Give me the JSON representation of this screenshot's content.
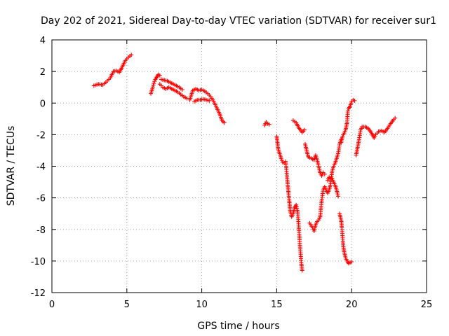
{
  "chart_data": {
    "type": "scatter",
    "title": "Day 202 of 2021, Sidereal Day-to-day VTEC variation (SDTVAR) for receiver sur1",
    "xlabel": "GPS time / hours",
    "ylabel": "SDTVAR / TECUs",
    "xlim": [
      0,
      25
    ],
    "ylim": [
      -12,
      4
    ],
    "xticks": [
      0,
      5,
      10,
      15,
      20,
      25
    ],
    "yticks": [
      -12,
      -10,
      -8,
      -6,
      -4,
      -2,
      0,
      2,
      4
    ],
    "grid": true,
    "marker": "+",
    "color": "#ff0000",
    "series": [
      {
        "name": "segment-1",
        "points": [
          [
            2.8,
            1.1
          ],
          [
            3.1,
            1.2
          ],
          [
            3.4,
            1.15
          ],
          [
            3.7,
            1.4
          ],
          [
            3.9,
            1.6
          ],
          [
            4.1,
            2.0
          ],
          [
            4.3,
            2.05
          ],
          [
            4.5,
            1.95
          ],
          [
            4.7,
            2.3
          ],
          [
            4.9,
            2.7
          ],
          [
            5.1,
            2.9
          ],
          [
            5.3,
            3.05
          ]
        ]
      },
      {
        "name": "segment-2",
        "points": [
          [
            6.6,
            0.6
          ],
          [
            6.7,
            0.9
          ],
          [
            6.8,
            1.25
          ],
          [
            6.9,
            1.5
          ],
          [
            7.0,
            1.65
          ],
          [
            7.1,
            1.8
          ],
          [
            7.2,
            1.75
          ]
        ]
      },
      {
        "name": "segment-3",
        "points": [
          [
            7.2,
            1.2
          ],
          [
            7.4,
            1.0
          ],
          [
            7.6,
            0.9
          ],
          [
            7.8,
            1.0
          ],
          [
            8.0,
            0.9
          ],
          [
            8.2,
            0.8
          ],
          [
            8.4,
            0.7
          ],
          [
            8.6,
            0.55
          ],
          [
            8.8,
            0.4
          ],
          [
            9.0,
            0.3
          ]
        ]
      },
      {
        "name": "segment-4",
        "points": [
          [
            7.3,
            1.5
          ],
          [
            7.5,
            1.45
          ],
          [
            7.7,
            1.4
          ],
          [
            7.9,
            1.3
          ],
          [
            8.1,
            1.2
          ],
          [
            8.3,
            1.1
          ],
          [
            8.5,
            1.0
          ],
          [
            8.7,
            0.85
          ]
        ]
      },
      {
        "name": "segment-5",
        "points": [
          [
            9.2,
            0.2
          ],
          [
            9.3,
            0.5
          ],
          [
            9.4,
            0.8
          ],
          [
            9.6,
            0.9
          ],
          [
            9.8,
            0.8
          ],
          [
            10.0,
            0.85
          ],
          [
            10.2,
            0.75
          ],
          [
            10.4,
            0.6
          ],
          [
            10.6,
            0.4
          ],
          [
            10.8,
            0.1
          ],
          [
            11.0,
            -0.3
          ],
          [
            11.2,
            -0.7
          ],
          [
            11.35,
            -1.1
          ],
          [
            11.5,
            -1.25
          ]
        ]
      },
      {
        "name": "segment-6",
        "points": [
          [
            9.5,
            0.1
          ],
          [
            9.7,
            0.2
          ],
          [
            9.9,
            0.2
          ],
          [
            10.1,
            0.25
          ],
          [
            10.3,
            0.2
          ],
          [
            10.5,
            0.15
          ]
        ]
      },
      {
        "name": "segment-7",
        "points": [
          [
            14.2,
            -1.4
          ],
          [
            14.3,
            -1.2
          ],
          [
            14.4,
            -1.3
          ],
          [
            14.5,
            -1.35
          ]
        ]
      },
      {
        "name": "segment-8",
        "points": [
          [
            15.0,
            -2.1
          ],
          [
            15.05,
            -2.5
          ],
          [
            15.1,
            -2.9
          ],
          [
            15.2,
            -3.2
          ],
          [
            15.3,
            -3.5
          ],
          [
            15.4,
            -3.75
          ],
          [
            15.5,
            -3.8
          ],
          [
            15.6,
            -3.7
          ],
          [
            15.65,
            -4.2
          ],
          [
            15.7,
            -4.8
          ],
          [
            15.75,
            -5.3
          ],
          [
            15.8,
            -5.8
          ],
          [
            15.85,
            -6.3
          ],
          [
            15.9,
            -6.8
          ],
          [
            16.0,
            -7.2
          ],
          [
            16.1,
            -7.0
          ],
          [
            16.2,
            -6.6
          ],
          [
            16.3,
            -6.45
          ],
          [
            16.4,
            -6.9
          ],
          [
            16.45,
            -7.5
          ],
          [
            16.5,
            -8.3
          ],
          [
            16.55,
            -9.0
          ],
          [
            16.6,
            -9.6
          ],
          [
            16.65,
            -10.2
          ],
          [
            16.7,
            -10.6
          ]
        ]
      },
      {
        "name": "segment-9",
        "points": [
          [
            16.1,
            -1.1
          ],
          [
            16.3,
            -1.25
          ],
          [
            16.5,
            -1.6
          ],
          [
            16.7,
            -1.85
          ],
          [
            16.85,
            -1.7
          ]
        ]
      },
      {
        "name": "segment-10",
        "points": [
          [
            16.9,
            -2.6
          ],
          [
            17.0,
            -3.0
          ],
          [
            17.1,
            -3.4
          ],
          [
            17.3,
            -3.5
          ],
          [
            17.5,
            -3.6
          ],
          [
            17.6,
            -3.3
          ],
          [
            17.7,
            -3.6
          ],
          [
            17.8,
            -4.0
          ],
          [
            17.9,
            -4.4
          ],
          [
            18.0,
            -4.6
          ],
          [
            18.1,
            -4.4
          ],
          [
            18.2,
            -4.5
          ]
        ]
      },
      {
        "name": "segment-11",
        "points": [
          [
            17.2,
            -7.6
          ],
          [
            17.4,
            -7.9
          ],
          [
            17.5,
            -8.1
          ],
          [
            17.6,
            -7.7
          ],
          [
            17.7,
            -7.5
          ],
          [
            17.8,
            -7.4
          ],
          [
            17.9,
            -7.2
          ],
          [
            18.0,
            -6.2
          ],
          [
            18.1,
            -5.5
          ],
          [
            18.2,
            -5.3
          ],
          [
            18.3,
            -5.5
          ],
          [
            18.4,
            -5.7
          ],
          [
            18.5,
            -5.5
          ],
          [
            18.6,
            -5.1
          ],
          [
            18.7,
            -4.3
          ],
          [
            18.8,
            -4.0
          ],
          [
            18.9,
            -3.8
          ],
          [
            19.0,
            -3.5
          ],
          [
            19.1,
            -3.2
          ],
          [
            19.2,
            -2.6
          ],
          [
            19.3,
            -2.3
          ]
        ]
      },
      {
        "name": "segment-12",
        "points": [
          [
            18.4,
            -4.9
          ],
          [
            18.5,
            -4.7
          ],
          [
            18.7,
            -4.8
          ],
          [
            18.9,
            -5.2
          ],
          [
            19.0,
            -5.5
          ],
          [
            19.1,
            -5.9
          ]
        ]
      },
      {
        "name": "segment-13",
        "points": [
          [
            19.2,
            -7.0
          ],
          [
            19.3,
            -7.4
          ],
          [
            19.35,
            -7.9
          ],
          [
            19.4,
            -8.5
          ],
          [
            19.45,
            -9.1
          ],
          [
            19.5,
            -9.4
          ],
          [
            19.6,
            -9.8
          ],
          [
            19.7,
            -10.0
          ],
          [
            19.8,
            -10.15
          ],
          [
            19.9,
            -10.1
          ],
          [
            20.0,
            -10.05
          ]
        ]
      },
      {
        "name": "segment-14",
        "points": [
          [
            19.3,
            -2.5
          ],
          [
            19.4,
            -2.1
          ],
          [
            19.5,
            -1.9
          ],
          [
            19.6,
            -1.7
          ],
          [
            19.7,
            -1.2
          ],
          [
            19.75,
            -0.5
          ],
          [
            19.8,
            -0.35
          ],
          [
            19.9,
            -0.2
          ],
          [
            20.0,
            0.1
          ],
          [
            20.1,
            0.2
          ],
          [
            20.2,
            0.15
          ]
        ]
      },
      {
        "name": "segment-15",
        "points": [
          [
            20.3,
            -3.3
          ],
          [
            20.4,
            -2.8
          ],
          [
            20.5,
            -2.3
          ],
          [
            20.6,
            -1.7
          ],
          [
            20.7,
            -1.5
          ],
          [
            20.9,
            -1.5
          ],
          [
            21.1,
            -1.6
          ],
          [
            21.3,
            -1.85
          ],
          [
            21.5,
            -2.2
          ],
          [
            21.6,
            -2.0
          ],
          [
            21.8,
            -1.8
          ],
          [
            22.0,
            -1.75
          ],
          [
            22.2,
            -1.85
          ],
          [
            22.4,
            -1.6
          ],
          [
            22.6,
            -1.3
          ],
          [
            22.8,
            -1.05
          ],
          [
            22.9,
            -0.95
          ]
        ]
      }
    ]
  }
}
